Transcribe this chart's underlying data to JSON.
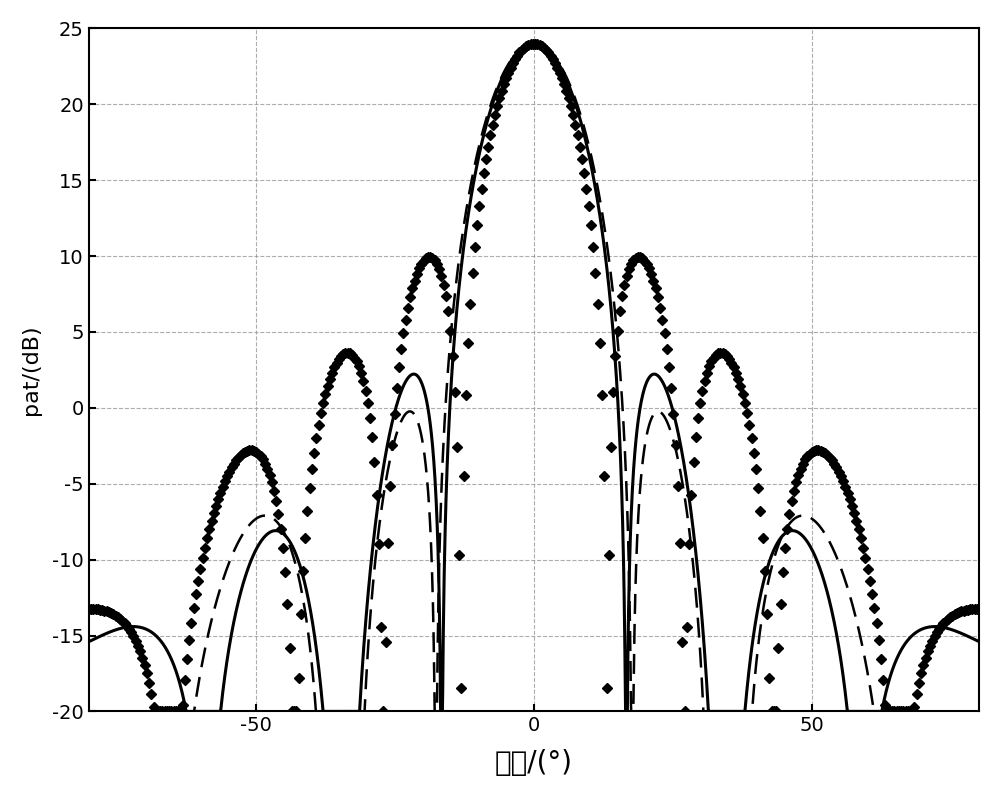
{
  "title": "",
  "xlabel": "角度/(°)",
  "ylabel": "pat/(dB)",
  "xlim": [
    -80,
    80
  ],
  "ylim": [
    -20,
    25
  ],
  "xticks": [
    -50,
    0,
    50
  ],
  "yticks": [
    -20,
    -15,
    -10,
    -5,
    0,
    5,
    10,
    15,
    20,
    25
  ],
  "grid_color": "#999999",
  "grid_linestyle": "--",
  "background_color": "#ffffff",
  "line_color": "#000000",
  "figsize": [
    10.0,
    7.98
  ],
  "dpi": 100
}
